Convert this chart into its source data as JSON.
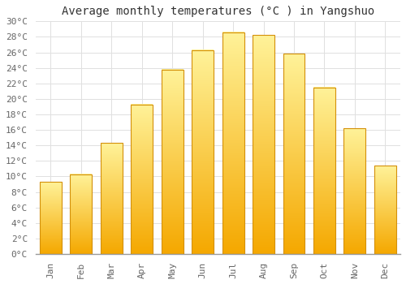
{
  "title": "Average monthly temperatures (°C ) in Yangshuo",
  "months": [
    "Jan",
    "Feb",
    "Mar",
    "Apr",
    "May",
    "Jun",
    "Jul",
    "Aug",
    "Sep",
    "Oct",
    "Nov",
    "Dec"
  ],
  "temperatures": [
    9.3,
    10.3,
    14.3,
    19.3,
    23.8,
    26.3,
    28.6,
    28.2,
    25.8,
    21.5,
    16.2,
    11.4
  ],
  "bar_color_bottom": "#F5A800",
  "bar_color_top": "#FFE080",
  "bar_edge_color": "#D4900A",
  "ylim": [
    0,
    30
  ],
  "ytick_step": 2,
  "background_color": "#ffffff",
  "grid_color": "#e0e0e0",
  "title_fontsize": 10,
  "tick_fontsize": 8,
  "font_family": "monospace"
}
